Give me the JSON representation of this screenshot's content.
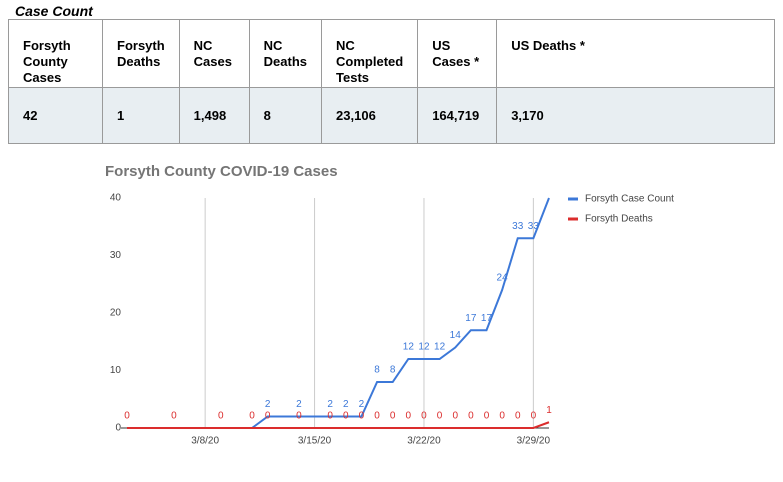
{
  "title": "Case Count",
  "table": {
    "header": [
      "Forsyth County Cases",
      "Forsyth Deaths",
      "NC Cases",
      "NC Deaths",
      "NC Completed Tests",
      "US Cases *",
      "US Deaths *"
    ],
    "rows": [
      [
        "42",
        "1",
        "1,498",
        "8",
        "23,106",
        "164,719",
        "3,170"
      ]
    ]
  },
  "chart_data": {
    "type": "line",
    "title": "Forsyth County COVID-19 Cases",
    "x": [
      "3/3/20",
      "3/4/20",
      "3/5/20",
      "3/6/20",
      "3/7/20",
      "3/8/20",
      "3/9/20",
      "3/10/20",
      "3/11/20",
      "3/12/20",
      "3/13/20",
      "3/14/20",
      "3/15/20",
      "3/16/20",
      "3/17/20",
      "3/18/20",
      "3/19/20",
      "3/20/20",
      "3/21/20",
      "3/22/20",
      "3/23/20",
      "3/24/20",
      "3/25/20",
      "3/26/20",
      "3/27/20",
      "3/28/20",
      "3/29/20",
      "3/30/20"
    ],
    "xticks": [
      "3/8/20",
      "3/15/20",
      "3/22/20",
      "3/29/20"
    ],
    "ylim": [
      0,
      40
    ],
    "yticks": [
      0,
      10,
      20,
      30,
      40
    ],
    "grid": true,
    "legend": "right",
    "series": [
      {
        "name": "Forsyth Case Count",
        "color": "#3c78d8",
        "values": [
          0,
          0,
          0,
          0,
          0,
          0,
          0,
          0,
          0,
          2,
          2,
          2,
          2,
          2,
          2,
          2,
          8,
          8,
          12,
          12,
          12,
          14,
          17,
          17,
          24,
          33,
          33,
          40
        ],
        "value_labels": [
          null,
          null,
          null,
          null,
          null,
          null,
          null,
          null,
          null,
          "2",
          null,
          "2",
          null,
          "2",
          "2",
          "2",
          "8",
          "8",
          "12",
          "12",
          "12",
          "14",
          "17",
          "17",
          "24",
          "33",
          "33",
          null
        ]
      },
      {
        "name": "Forsyth Deaths",
        "color": "#db2d2d",
        "values": [
          0,
          0,
          0,
          0,
          0,
          0,
          0,
          0,
          0,
          0,
          0,
          0,
          0,
          0,
          0,
          0,
          0,
          0,
          0,
          0,
          0,
          0,
          0,
          0,
          0,
          0,
          0,
          1
        ],
        "value_labels": [
          "0",
          null,
          null,
          "0",
          null,
          null,
          "0",
          null,
          "0",
          "0",
          null,
          "0",
          null,
          "0",
          "0",
          "0",
          "0",
          "0",
          "0",
          "0",
          "0",
          "0",
          "0",
          "0",
          "0",
          "0",
          "0",
          "1"
        ]
      }
    ]
  }
}
